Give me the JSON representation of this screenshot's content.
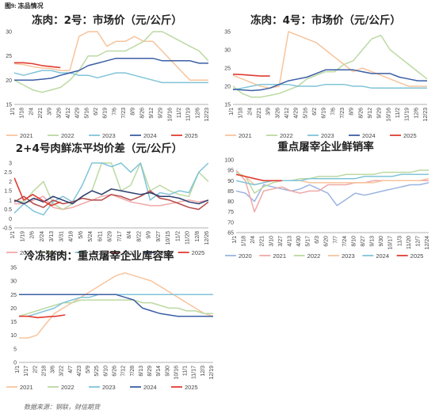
{
  "figure_caption": "图9: 冻品情况",
  "source": "数据来源：钢联，财信期货",
  "chart_data": [
    {
      "id": "c1",
      "type": "line",
      "title": "冻肉：2号：市场价（元/公斤）",
      "ylim": [
        15,
        30
      ],
      "yticks": [
        15,
        20,
        25,
        30
      ],
      "x_tick_labels": [
        "1/1",
        "1/18",
        "2/4",
        "2/21",
        "3/9",
        "3/26",
        "4/12",
        "4/29",
        "5/16",
        "6/2",
        "6/19",
        "7/6",
        "7/23",
        "8/9",
        "8/26",
        "9/12",
        "9/29",
        "10/16",
        "11/2",
        "11/19",
        "12/6",
        "12/23"
      ],
      "legend": [
        "2021",
        "2022",
        "2023",
        "2024",
        "2025"
      ],
      "series": [
        {
          "name": "2021",
          "color": "#f7c49c",
          "values": [
            23.4,
            23.2,
            22.8,
            22.5,
            22.4,
            22.0,
            22.0,
            29,
            30,
            30,
            27,
            28,
            28,
            29,
            28,
            28,
            26,
            24,
            22,
            20,
            20,
            20
          ]
        },
        {
          "name": "2022",
          "color": "#bcd9a3",
          "values": [
            20.0,
            19.0,
            18.0,
            17.5,
            18.0,
            18.5,
            20,
            22,
            25,
            25,
            26,
            26,
            26,
            27,
            28,
            30,
            30,
            29,
            28,
            27,
            26,
            24
          ]
        },
        {
          "name": "2023",
          "color": "#80c4d8",
          "values": [
            21.5,
            21,
            21.5,
            22,
            22,
            21.5,
            21.5,
            21,
            21,
            20.5,
            21,
            21.5,
            21.5,
            21,
            20.5,
            20,
            19.5,
            19.5,
            19.5,
            19.5,
            19.5,
            19.5
          ]
        },
        {
          "name": "2024",
          "color": "#3b5ea4",
          "values": [
            20.0,
            20.0,
            20.0,
            20.2,
            20.4,
            21,
            21.5,
            22,
            23,
            23.5,
            24,
            24.5,
            24.5,
            24.5,
            24.5,
            24.5,
            24,
            24,
            24,
            24,
            23.5,
            23.5
          ]
        },
        {
          "name": "2025",
          "color": "#e03c31",
          "values": [
            23.6,
            23.6,
            23.4,
            23.0,
            22.8,
            22.6
          ]
        }
      ]
    },
    {
      "id": "c2",
      "type": "line",
      "title": "冻肉：4号：市场价（元/公斤）",
      "ylim": [
        15,
        35
      ],
      "yticks": [
        15,
        20,
        25,
        30,
        35
      ],
      "x_tick_labels": [
        "1/1",
        "1/18",
        "2/4",
        "2/21",
        "3/9",
        "3/26",
        "4/12",
        "4/29",
        "5/16",
        "6/2",
        "6/19",
        "7/6",
        "7/23",
        "8/9",
        "8/26",
        "9/12",
        "9/29",
        "10/16",
        "11/2",
        "11/19",
        "12/6",
        "12/23"
      ],
      "legend": [
        "2021",
        "2022",
        "2023",
        "2024",
        "2025"
      ],
      "series": [
        {
          "name": "2021",
          "color": "#f7c49c",
          "values": [
            23,
            22,
            21,
            20,
            19.5,
            20,
            35,
            34,
            33,
            32,
            30,
            28,
            26,
            24,
            25,
            24,
            23,
            22,
            21,
            20,
            20,
            20
          ]
        },
        {
          "name": "2022",
          "color": "#bcd9a3",
          "values": [
            20,
            18,
            17,
            17,
            17.5,
            18,
            19,
            20,
            22,
            23,
            24,
            24,
            26,
            27,
            30,
            33,
            34,
            30,
            28,
            26,
            24,
            22
          ]
        },
        {
          "name": "2023",
          "color": "#80c4d8",
          "values": [
            19,
            19.5,
            20,
            20.5,
            20.5,
            20.5,
            20.5,
            20,
            20,
            20,
            20.5,
            20.5,
            20.5,
            20,
            20,
            19.5,
            19.5,
            19.5,
            19.5,
            19.5,
            19.5,
            19.5
          ]
        },
        {
          "name": "2024",
          "color": "#3b5ea4",
          "values": [
            19.2,
            19.0,
            18.8,
            19.0,
            19.5,
            20.5,
            21.5,
            22,
            22.5,
            23.5,
            24.5,
            24.5,
            24.5,
            24.5,
            24.0,
            23.5,
            23.5,
            23.5,
            22.5,
            22,
            21.5,
            21.5
          ]
        },
        {
          "name": "2025",
          "color": "#e03c31",
          "values": [
            23.3,
            23.2,
            23.0,
            22.8,
            22.8
          ]
        }
      ]
    },
    {
      "id": "c3",
      "type": "line",
      "title": "2+4号肉鲜冻平均价差（元/公斤）",
      "ylim": [
        -0.5,
        3
      ],
      "yticks": [
        -0.5,
        0,
        0.5,
        1,
        1.5,
        2,
        2.5,
        3
      ],
      "x_tick_labels": [
        "1/1",
        "1/19",
        "2/6",
        "2/24",
        "3/13",
        "3/31",
        "4/18",
        "5/6",
        "5/24",
        "6/11",
        "6/29",
        "7/17",
        "8/4",
        "8/22",
        "9/9",
        "9/27",
        "10/15",
        "11/2",
        "11/20",
        "12/8",
        "12/26"
      ],
      "legend": [
        "2020",
        "2021",
        "2022",
        "2023",
        "2024",
        "2025"
      ],
      "series": [
        {
          "name": "2020",
          "color": "#f0a8a8",
          "values": [
            0.8,
            0.8,
            1.0,
            1.2,
            0.6,
            0.5,
            0.6,
            0.8,
            1.0,
            1.2,
            1.3,
            1.1,
            0.9,
            0.8,
            0.7,
            0.7,
            0.8,
            0.9,
            1.0,
            0.9,
            1.0
          ]
        },
        {
          "name": "2021",
          "color": "#bcd9a3",
          "values": [
            1.0,
            0.9,
            1.5,
            2.0,
            0.8,
            0.5,
            0.8,
            1.2,
            1.5,
            3.0,
            3.0,
            1.5,
            1.8,
            3.0,
            1.5,
            1.8,
            1.5,
            1.3,
            1.2,
            2.5,
            2.0
          ]
        },
        {
          "name": "2022",
          "color": "#80c4d8",
          "values": [
            0.3,
            0.8,
            0.4,
            0.2,
            0.9,
            1.2,
            0.9,
            1.8,
            3.0,
            3.0,
            2.8,
            3.0,
            2.5,
            3.0,
            1.0,
            1.4,
            1.3,
            1.5,
            1.4,
            2.5,
            3.0
          ]
        },
        {
          "name": "2023",
          "color": "#b54a4a",
          "values": [
            0.9,
            1.2,
            0.8,
            0.6,
            1.0,
            0.8,
            0.9,
            1.1,
            1.0,
            1.0,
            1.3,
            1.2,
            1.0,
            1.2,
            1.5,
            1.1,
            1.0,
            0.8,
            0.6,
            0.5,
            0.9
          ]
        },
        {
          "name": "2024",
          "color": "#2c3e6e",
          "values": [
            1.0,
            0.8,
            1.1,
            0.9,
            1.2,
            1.0,
            0.8,
            1.2,
            1.5,
            1.3,
            1.6,
            1.5,
            1.4,
            1.3,
            1.4,
            1.2,
            1.2,
            1.1,
            0.9,
            0.8,
            1.0
          ]
        },
        {
          "name": "2025",
          "color": "#e03c31",
          "values": [
            2.2,
            1.0,
            1.3,
            1.0,
            0.7,
            0.9
          ]
        }
      ]
    },
    {
      "id": "c4",
      "type": "line",
      "title": "重点屠宰企业鲜销率",
      "ylim": [
        65,
        100
      ],
      "yticks": [
        65,
        70,
        75,
        80,
        85,
        90,
        95,
        100
      ],
      "x_tick_labels": [
        "1/1",
        "1/18",
        "2/4",
        "2/21",
        "3/10",
        "3/27",
        "4/13",
        "4/30",
        "5/17",
        "6/3",
        "6/20",
        "7/7",
        "7/24",
        "8/10",
        "8/27",
        "9/13",
        "9/30",
        "10/17",
        "11/3",
        "11/20",
        "12/7",
        "12/24"
      ],
      "legend": [
        "2020",
        "2021",
        "2022",
        "2023",
        "2024",
        "2025"
      ],
      "series": [
        {
          "name": "2020",
          "color": "#9bb4e0",
          "values": [
            85,
            84,
            80,
            88,
            87,
            86,
            85,
            86,
            88,
            86,
            84,
            78,
            81,
            84,
            83,
            84,
            85,
            86,
            87,
            88,
            88,
            89
          ]
        },
        {
          "name": "2021",
          "color": "#f0a8a8",
          "values": [
            95,
            90,
            75,
            85,
            86,
            87,
            85,
            84,
            85,
            85,
            88,
            88,
            88,
            89,
            89,
            90,
            90,
            90,
            90,
            90,
            90,
            90
          ]
        },
        {
          "name": "2022",
          "color": "#bcd9a3",
          "values": [
            94,
            92,
            84,
            87,
            89,
            90,
            90,
            91,
            91,
            92,
            92,
            92,
            93,
            93,
            93,
            93,
            94,
            94,
            94,
            94,
            95,
            95
          ]
        },
        {
          "name": "2023",
          "color": "#f7c49c",
          "values": [
            93,
            92,
            88,
            89,
            90,
            90,
            90,
            90,
            89,
            89,
            89,
            89,
            89,
            89,
            89,
            89,
            90,
            90,
            90,
            90,
            90,
            91
          ]
        },
        {
          "name": "2024",
          "color": "#80c4d8",
          "values": [
            90,
            89,
            88,
            89,
            90,
            90,
            90,
            90,
            91,
            91,
            91,
            91,
            91,
            91,
            92,
            92,
            92,
            92,
            93,
            93,
            93,
            93
          ]
        },
        {
          "name": "2025",
          "color": "#e03c31",
          "values": [
            93,
            92,
            91,
            90,
            90,
            90
          ]
        }
      ]
    },
    {
      "id": "c5",
      "type": "line",
      "title": "冷冻猪肉：重点屠宰企业库容率",
      "ylim": [
        0,
        35
      ],
      "yticks": [
        0,
        5,
        10,
        15,
        20,
        25,
        30,
        35
      ],
      "x_tick_labels": [
        "1/1",
        "1/17",
        "2/2",
        "2/18",
        "3/6",
        "3/22",
        "4/7",
        "4/23",
        "5/9",
        "5/25",
        "6/10",
        "6/26",
        "7/12",
        "7/28",
        "8/13",
        "8/29",
        "9/14",
        "9/30",
        "10/16",
        "11/1",
        "11/17",
        "12/3",
        "12/19"
      ],
      "legend": [
        "2021",
        "2022",
        "2023",
        "2024",
        "2025"
      ],
      "series": [
        {
          "name": "2021",
          "color": "#f7c49c",
          "values": [
            9,
            9,
            10,
            14,
            18,
            20,
            22,
            24,
            26,
            28,
            30,
            32,
            33,
            32,
            31,
            30,
            28,
            26,
            24,
            22,
            20,
            18,
            17
          ]
        },
        {
          "name": "2022",
          "color": "#bcd9a3",
          "values": [
            17,
            18,
            19,
            20,
            21,
            22,
            22,
            23,
            23,
            23,
            23,
            23,
            23,
            23,
            22,
            22,
            21,
            20,
            20,
            19,
            19,
            18,
            18
          ]
        },
        {
          "name": "2023",
          "color": "#80c4d8",
          "values": [
            17,
            17,
            18,
            19,
            20,
            22,
            23,
            24,
            24,
            25,
            25,
            25,
            25,
            25,
            25,
            25,
            25,
            25,
            25,
            25,
            25,
            25,
            25
          ]
        },
        {
          "name": "2024",
          "color": "#3b5ea4",
          "values": [
            25,
            25,
            25,
            25,
            25,
            25,
            25,
            25,
            25,
            25,
            25,
            25,
            24,
            23,
            20,
            19,
            18,
            17.5,
            17,
            17,
            17,
            17,
            17
          ]
        },
        {
          "name": "2025",
          "color": "#e03c31",
          "values": [
            17,
            17,
            16.5,
            16.8,
            17,
            17.5
          ]
        }
      ]
    }
  ]
}
